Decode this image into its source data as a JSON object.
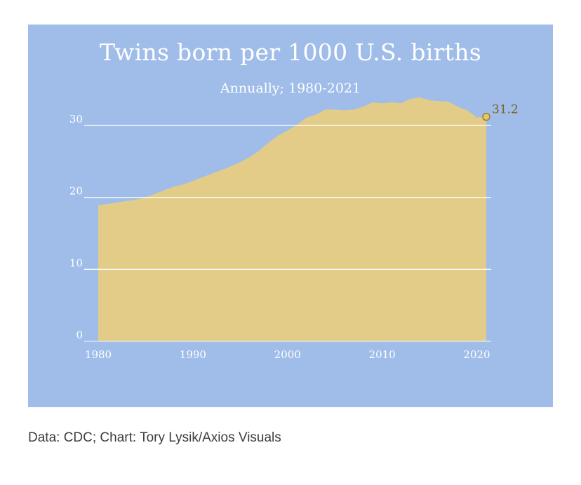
{
  "chart_data": {
    "type": "area",
    "title": "Twins born per 1000 U.S. births",
    "subtitle": "Annually; 1980-2021",
    "x": [
      1980,
      1981,
      1982,
      1983,
      1984,
      1985,
      1986,
      1987,
      1988,
      1989,
      1990,
      1991,
      1992,
      1993,
      1994,
      1995,
      1996,
      1997,
      1998,
      1999,
      2000,
      2001,
      2002,
      2003,
      2004,
      2005,
      2006,
      2007,
      2008,
      2009,
      2010,
      2011,
      2012,
      2013,
      2014,
      2015,
      2016,
      2017,
      2018,
      2019,
      2020,
      2021
    ],
    "values": [
      18.9,
      19.1,
      19.3,
      19.5,
      19.7,
      20.0,
      20.5,
      21.0,
      21.5,
      21.8,
      22.3,
      22.8,
      23.3,
      23.8,
      24.3,
      24.9,
      25.6,
      26.5,
      27.6,
      28.6,
      29.3,
      30.1,
      31.1,
      31.5,
      32.2,
      32.2,
      32.1,
      32.2,
      32.6,
      33.2,
      33.1,
      33.2,
      33.1,
      33.7,
      33.9,
      33.5,
      33.4,
      33.3,
      32.6,
      32.1,
      31.1,
      31.2
    ],
    "yticks": [
      0,
      10,
      20,
      30
    ],
    "ytick_labels": [
      "0",
      "10",
      "20",
      "30"
    ],
    "xticks": [
      1980,
      1990,
      2000,
      2010,
      2020
    ],
    "xtick_labels": [
      "1980",
      "1990",
      "2000",
      "2010",
      "2020"
    ],
    "ylim": [
      0,
      34
    ],
    "xlim": [
      1980,
      2021
    ],
    "annotation": "31.2",
    "grid": true,
    "colors": {
      "background": "#9fbde8",
      "area": "#e3cc88",
      "grid": "#ffffff",
      "label": "#7a6228",
      "tick": "#ffffff"
    }
  },
  "source": "Data: CDC; Chart: Tory Lysik/Axios Visuals"
}
